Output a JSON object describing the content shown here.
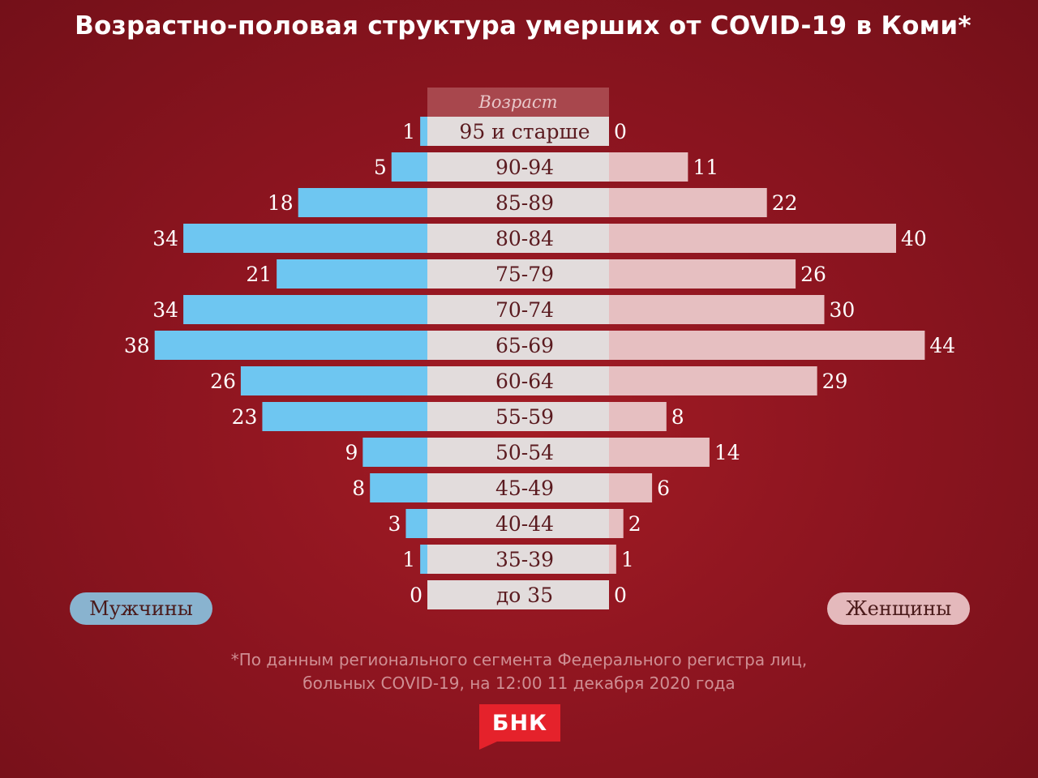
{
  "title": "Возрастно-половая структура умерших от COVID-19 в Коми*",
  "legend": {
    "men": "Мужчины",
    "women": "Женщины"
  },
  "footnote": {
    "line1": "*По данным регионального сегмента Федерального регистра лиц,",
    "line2": "больных COVID-19, на 12:00 11 декабря 2020 года"
  },
  "logo": "БНК",
  "colors": {
    "men": "#6ec6f1",
    "women": "#e6bfc1",
    "center": "#e2dcdc",
    "center_header": "#a8474d",
    "label_text": "#ffffff",
    "age_text": "#5a1a1f"
  },
  "chart_data": {
    "type": "bar",
    "subtype": "population-pyramid",
    "title": "Возрастно-половая структура умерших от COVID-19 в Коми*",
    "center_header": "Возраст",
    "categories": [
      "95 и старше",
      "90-94",
      "85-89",
      "80-84",
      "75-79",
      "70-74",
      "65-69",
      "60-64",
      "55-59",
      "50-54",
      "45-49",
      "40-44",
      "35-39",
      "до 35"
    ],
    "series": [
      {
        "name": "Мужчины",
        "side": "left",
        "values": [
          1,
          5,
          18,
          34,
          21,
          34,
          38,
          26,
          23,
          9,
          8,
          3,
          1,
          0
        ]
      },
      {
        "name": "Женщины",
        "side": "right",
        "values": [
          0,
          11,
          22,
          40,
          26,
          30,
          44,
          29,
          8,
          14,
          6,
          2,
          1,
          0
        ]
      }
    ],
    "grid": false,
    "legend_position": "bottom-left / bottom-right"
  }
}
